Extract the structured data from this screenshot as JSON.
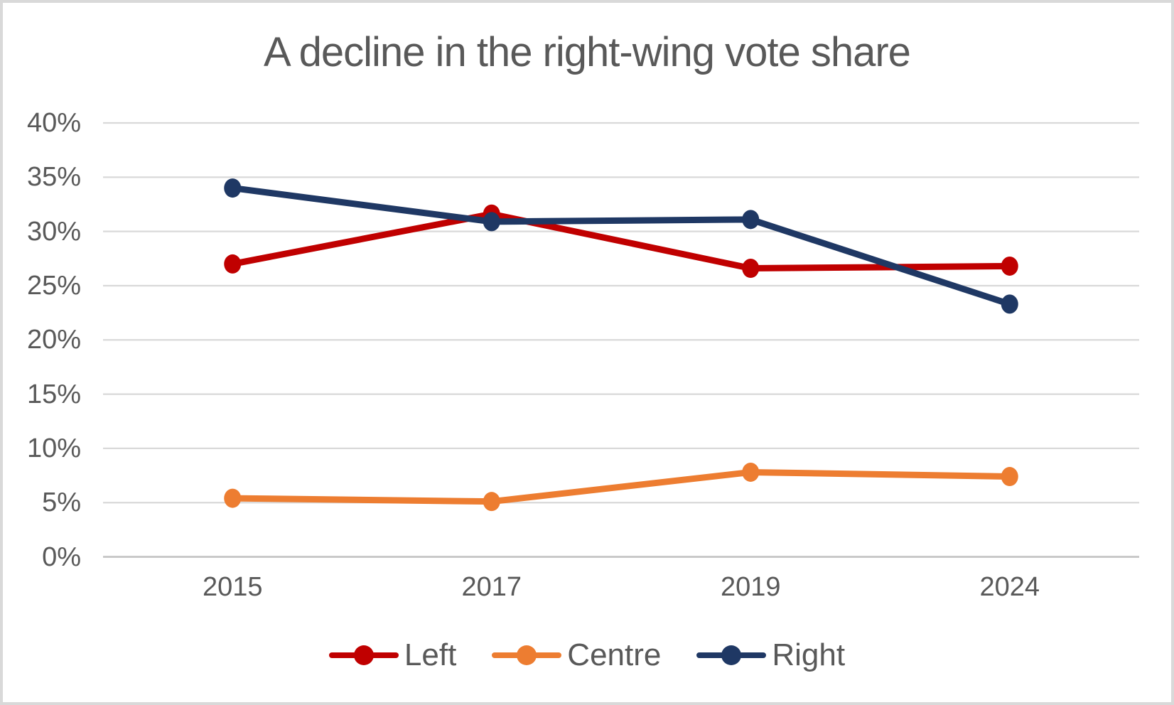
{
  "chart_data": {
    "type": "line",
    "title": "A decline in the right-wing vote share",
    "categories": [
      "2015",
      "2017",
      "2019",
      "2024"
    ],
    "series": [
      {
        "name": "Left",
        "color": "#c00000",
        "values": [
          27.0,
          31.6,
          26.6,
          26.8
        ]
      },
      {
        "name": "Centre",
        "color": "#ed7d31",
        "values": [
          5.4,
          5.1,
          7.8,
          7.4
        ]
      },
      {
        "name": "Right",
        "color": "#1f3864",
        "values": [
          34.0,
          30.9,
          31.1,
          23.3
        ]
      }
    ],
    "y_axis": {
      "min": 0,
      "max": 40,
      "step": 5,
      "tick_labels": [
        "0%",
        "5%",
        "10%",
        "15%",
        "20%",
        "25%",
        "30%",
        "35%",
        "40%"
      ]
    },
    "x_axis": {
      "tick_labels": [
        "2015",
        "2017",
        "2019",
        "2024"
      ]
    },
    "grid": true,
    "legend_position": "bottom",
    "legend_labels": [
      "Left",
      "Centre",
      "Right"
    ],
    "colors": {
      "text": "#595959",
      "gridline": "#d9d9d9",
      "axis_line": "#c9c9c9",
      "background": "#ffffff",
      "frame_border": "#d9d9d9"
    }
  }
}
